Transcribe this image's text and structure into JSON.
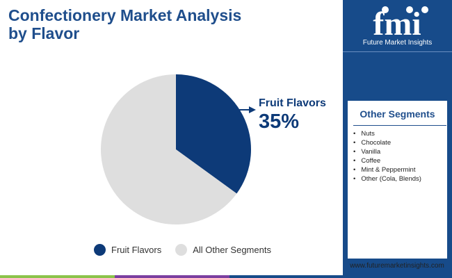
{
  "title": "Confectionery Market Analysis by Flavor",
  "chart_data": {
    "type": "pie",
    "slices": [
      {
        "label": "Fruit Flavors",
        "value": 35,
        "color": "#0d3a78"
      },
      {
        "label": "All Other Segments",
        "value": 65,
        "color": "#dedede"
      }
    ],
    "callout": {
      "label": "Fruit Flavors",
      "value": "35%"
    },
    "legend": [
      "Fruit Flavors",
      "All Other Segments"
    ],
    "legend_position": "bottom"
  },
  "sidebar": {
    "logo_text": "Future Market Insights",
    "panel_title": "Other Segments",
    "segments": [
      "Nuts",
      "Chocolate",
      "Vanilla",
      "Coffee",
      "Mint & Peppermint",
      "Other (Cola, Blends)"
    ]
  },
  "footer": {
    "url": "www.futuremarketinsights.com",
    "bar_colors": [
      "#8bc34a",
      "#7b3fa0",
      "#174b8a"
    ]
  },
  "colors": {
    "brand_blue": "#174b8a",
    "title_blue": "#1f4e8c",
    "fruit": "#0d3a78",
    "others": "#dedede"
  }
}
